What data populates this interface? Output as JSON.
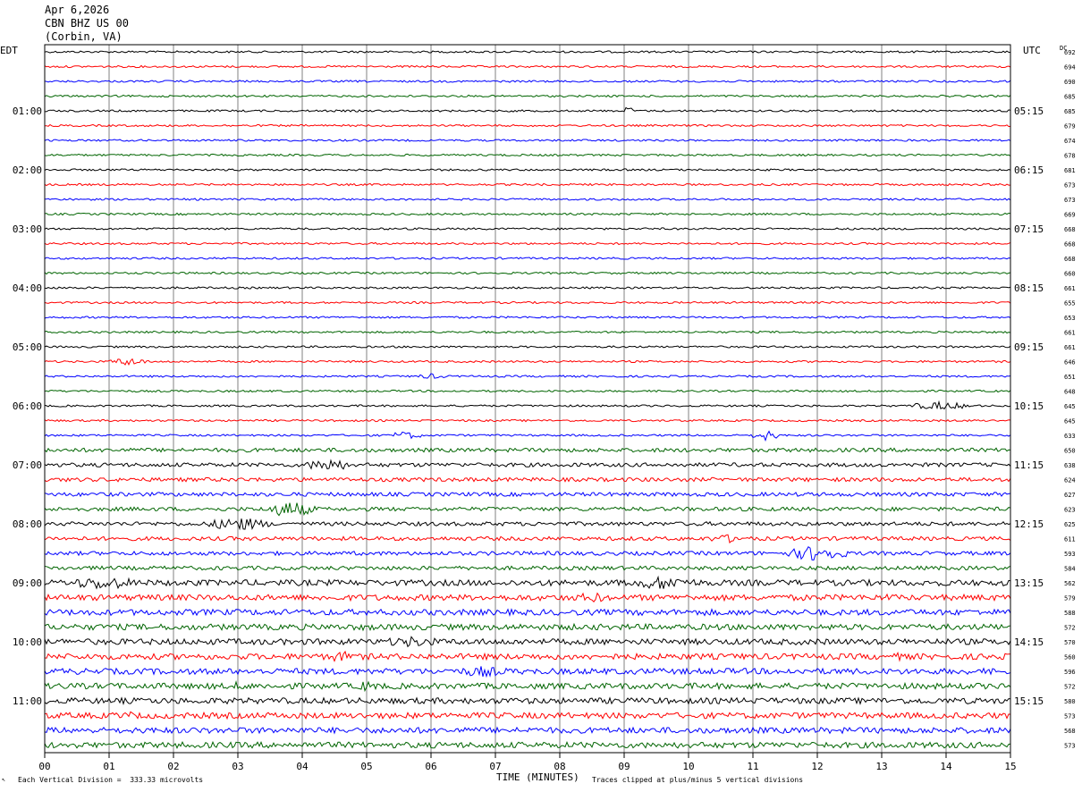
{
  "header": {
    "date": "Apr 6,2026",
    "station": "CBN BHZ US 00",
    "location": "(Corbin, VA)"
  },
  "footer": {
    "scale_note": "Each Vertical Division =  333.33 microvolts",
    "clip_note": "Traces clipped at plus/minus 5 vertical divisions"
  },
  "chart_data": {
    "type": "line",
    "title": "",
    "xlabel": "TIME (MINUTES)",
    "ylabel": "",
    "left_axis_label": "EDT",
    "right_axis_label": "UTC",
    "dc_label": "DC",
    "xlim": [
      0,
      15
    ],
    "x_ticks": [
      "00",
      "01",
      "02",
      "03",
      "04",
      "05",
      "06",
      "07",
      "08",
      "09",
      "10",
      "11",
      "12",
      "13",
      "14",
      "15"
    ],
    "grid": "vertical lines at each minute",
    "trace_colors": [
      "#000000",
      "#ff0000",
      "#0000ff",
      "#006400"
    ],
    "row_count": 48,
    "edt_labels": [
      {
        "row": 4,
        "text": "01:00"
      },
      {
        "row": 8,
        "text": "02:00"
      },
      {
        "row": 12,
        "text": "03:00"
      },
      {
        "row": 16,
        "text": "04:00"
      },
      {
        "row": 20,
        "text": "05:00"
      },
      {
        "row": 24,
        "text": "06:00"
      },
      {
        "row": 28,
        "text": "07:00"
      },
      {
        "row": 32,
        "text": "08:00"
      },
      {
        "row": 36,
        "text": "09:00"
      },
      {
        "row": 40,
        "text": "10:00"
      },
      {
        "row": 44,
        "text": "11:00"
      }
    ],
    "utc_labels": [
      {
        "row": 4,
        "text": "05:15"
      },
      {
        "row": 8,
        "text": "06:15"
      },
      {
        "row": 12,
        "text": "07:15"
      },
      {
        "row": 16,
        "text": "08:15"
      },
      {
        "row": 20,
        "text": "09:15"
      },
      {
        "row": 24,
        "text": "10:15"
      },
      {
        "row": 28,
        "text": "11:15"
      },
      {
        "row": 32,
        "text": "12:15"
      },
      {
        "row": 36,
        "text": "13:15"
      },
      {
        "row": 40,
        "text": "14:15"
      },
      {
        "row": 44,
        "text": "15:15"
      }
    ],
    "dc_offsets": [
      "692",
      "694",
      "690",
      "685",
      "685",
      "679",
      "674",
      "678",
      "681",
      "673",
      "673",
      "669",
      "668",
      "668",
      "668",
      "660",
      "661",
      "655",
      "653",
      "661",
      "661",
      "646",
      "651",
      "648",
      "645",
      "645",
      "633",
      "650",
      "638",
      "624",
      "627",
      "623",
      "625",
      "611",
      "593",
      "584",
      "562",
      "579",
      "588",
      "572",
      "570",
      "560",
      "596",
      "572",
      "580",
      "573",
      "568",
      "573"
    ],
    "trace_amplitude_level": [
      1,
      1,
      1,
      1,
      1,
      1,
      1,
      1,
      1,
      1,
      1,
      1,
      1,
      1,
      1,
      1,
      1,
      1,
      1,
      1,
      1,
      1,
      1,
      1,
      1,
      1,
      1,
      2,
      2,
      2,
      2,
      2,
      2,
      2,
      2,
      2,
      3,
      3,
      3,
      3,
      3,
      3,
      3,
      3,
      3,
      3,
      3,
      3
    ],
    "bursts": [
      {
        "row": 4,
        "x": 9.07,
        "width": 0.1,
        "level": 5
      },
      {
        "row": 21,
        "x": 1.3,
        "width": 0.6,
        "level": 3
      },
      {
        "row": 22,
        "x": 6.0,
        "width": 0.5,
        "level": 2
      },
      {
        "row": 24,
        "x": 13.9,
        "width": 1.0,
        "level": 3
      },
      {
        "row": 26,
        "x": 5.6,
        "width": 0.5,
        "level": 3
      },
      {
        "row": 26,
        "x": 11.2,
        "width": 0.4,
        "level": 4
      },
      {
        "row": 28,
        "x": 4.4,
        "width": 0.7,
        "level": 5
      },
      {
        "row": 31,
        "x": 3.8,
        "width": 0.8,
        "level": 6
      },
      {
        "row": 32,
        "x": 3.0,
        "width": 1.0,
        "level": 5
      },
      {
        "row": 33,
        "x": 10.6,
        "width": 0.8,
        "level": 3
      },
      {
        "row": 34,
        "x": 12.0,
        "width": 0.9,
        "level": 6
      },
      {
        "row": 36,
        "x": 0.9,
        "width": 1.2,
        "level": 5
      },
      {
        "row": 36,
        "x": 9.6,
        "width": 1.2,
        "level": 5
      },
      {
        "row": 37,
        "x": 8.5,
        "width": 0.6,
        "level": 4
      },
      {
        "row": 37,
        "x": 13.1,
        "width": 0.3,
        "level": 3
      },
      {
        "row": 38,
        "x": 10.3,
        "width": 0.3,
        "level": 3
      },
      {
        "row": 39,
        "x": 5.0,
        "width": 0.3,
        "level": 3
      },
      {
        "row": 40,
        "x": 5.7,
        "width": 1.1,
        "level": 4
      },
      {
        "row": 41,
        "x": 4.6,
        "width": 0.7,
        "level": 4
      },
      {
        "row": 41,
        "x": 13.3,
        "width": 0.5,
        "level": 3
      },
      {
        "row": 42,
        "x": 6.8,
        "width": 1.0,
        "level": 4
      },
      {
        "row": 43,
        "x": 3.0,
        "width": 0.7,
        "level": 3
      },
      {
        "row": 43,
        "x": 5.0,
        "width": 0.4,
        "level": 4
      },
      {
        "row": 45,
        "x": 1.3,
        "width": 0.5,
        "level": 3
      }
    ]
  }
}
